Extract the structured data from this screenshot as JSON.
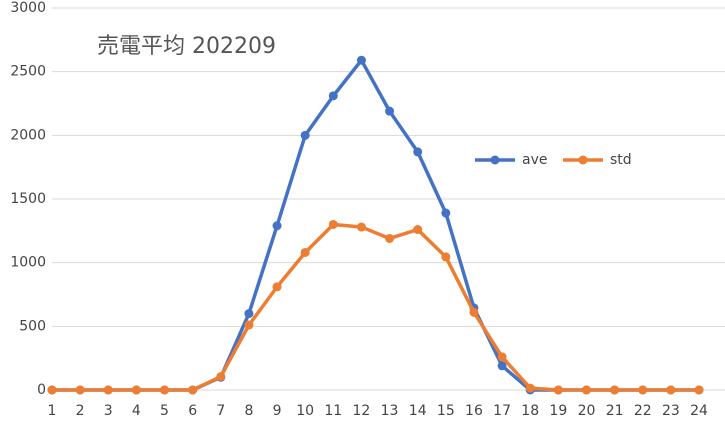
{
  "chart_data": {
    "type": "line",
    "title": "売電平均 202209",
    "categories": [
      "1",
      "2",
      "3",
      "4",
      "5",
      "6",
      "7",
      "8",
      "9",
      "10",
      "11",
      "12",
      "13",
      "14",
      "15",
      "16",
      "17",
      "18",
      "19",
      "20",
      "21",
      "22",
      "23",
      "24"
    ],
    "series": [
      {
        "name": "ave",
        "color": "#4472c4",
        "values": [
          0,
          0,
          0,
          0,
          0,
          0,
          100,
          600,
          1290,
          2000,
          2310,
          2590,
          2190,
          1870,
          1390,
          645,
          190,
          0,
          0,
          0,
          0,
          0,
          0,
          0
        ]
      },
      {
        "name": "std",
        "color": "#ed7d31",
        "values": [
          0,
          0,
          0,
          0,
          0,
          0,
          105,
          510,
          810,
          1080,
          1300,
          1280,
          1190,
          1260,
          1045,
          610,
          260,
          15,
          0,
          0,
          0,
          0,
          0,
          0
        ]
      }
    ],
    "ylim": [
      0,
      3000
    ],
    "yticks": [
      0,
      500,
      1000,
      1500,
      2000,
      2500,
      3000
    ],
    "grid": true
  }
}
